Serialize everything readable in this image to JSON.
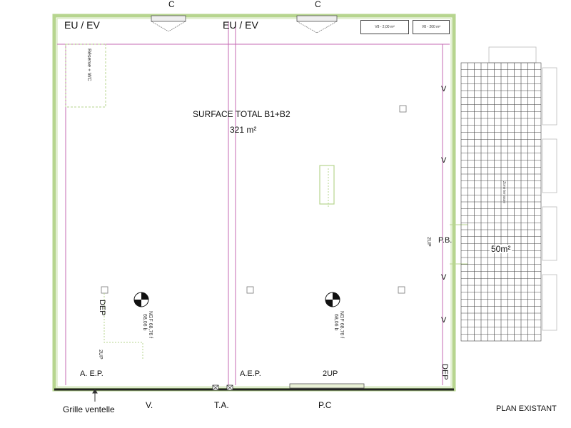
{
  "labels": {
    "top_c_left": "C",
    "top_c_right": "C",
    "eu_ev_left": "EU / EV",
    "eu_ev_mid": "EU / EV",
    "legend_1": "V8 - 2,00 m²",
    "legend_2": "V8 - 200 m²",
    "reserve": "Réserve + WC",
    "surface_line1": "SURFACE TOTAL B1+B2",
    "surface_line2": "321 m²",
    "v_1": "V",
    "v_2": "V",
    "v_3": "V",
    "v_4": "V",
    "pb": "P.B.",
    "up_pb": "2UP",
    "dep_left": "DEP",
    "up_left_low": "2UP",
    "dep_right": "DEP",
    "ngf_left_1": "NGF 68,76 f",
    "ngf_left_2": "68,06 b",
    "ngf_right_1": "NGF 68,76 f",
    "ngf_right_2": "68,06 b",
    "aep_left": "A. E.P.",
    "aep_mid": "A.E.P.",
    "up_bottom": "2UP",
    "grille": "Grille ventelle",
    "v_bottom": "V.",
    "ta": "T.A.",
    "pc": "P.C",
    "zone_label": "Zone terrasse",
    "zone_area": "50m²",
    "plan_existant": "PLAN EXISTANT"
  },
  "colors": {
    "wall": "#b7d58f",
    "interior_line": "#c46ab3",
    "grid": "#444444",
    "bottom_wall": "#222222"
  }
}
